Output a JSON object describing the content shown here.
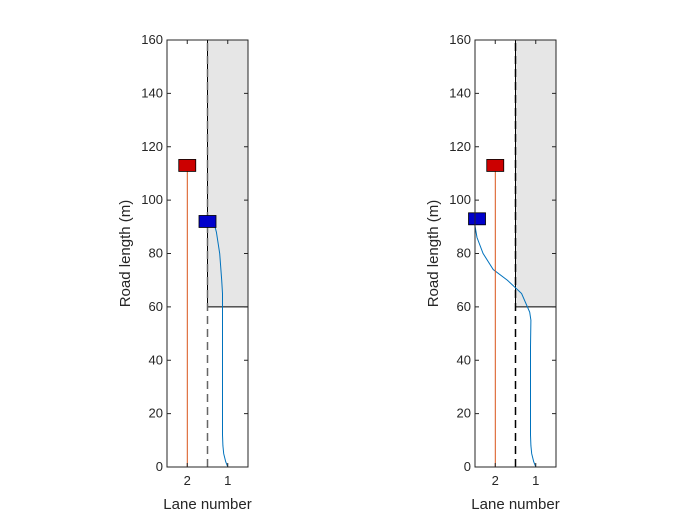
{
  "chart_data": [
    {
      "type": "line",
      "title": "",
      "xlabel": "Lane number",
      "ylabel": "Road length (m)",
      "ylim": [
        0,
        160
      ],
      "y_ticks": [
        "0",
        "20",
        "40",
        "60",
        "80",
        "100",
        "120",
        "140",
        "160"
      ],
      "x_ticks": [
        "2",
        "1"
      ],
      "grid": false,
      "lanes": [
        {
          "number": 2,
          "center": 2
        },
        {
          "number": 1,
          "center": 1
        }
      ],
      "lane_divider": {
        "x": 1.5,
        "style": "dashed",
        "color": "#666666"
      },
      "obstacle": {
        "x_from": 0.5,
        "x_to": 1.5,
        "y_from": 60,
        "y_to": 160,
        "color": "#e6e6e6"
      },
      "series": [
        {
          "color": "#0072bd",
          "points": [
            [
              1.0,
              0
            ],
            [
              1.05,
              2
            ],
            [
              1.1,
              5
            ],
            [
              1.12,
              8
            ],
            [
              1.13,
              12
            ],
            [
              1.13,
              30
            ],
            [
              1.13,
              50
            ],
            [
              1.13,
              65
            ],
            [
              1.15,
              70
            ],
            [
              1.2,
              80
            ],
            [
              1.28,
              88
            ],
            [
              1.35,
              92
            ]
          ]
        },
        {
          "color": "#d95319",
          "points": [
            [
              2.0,
              0
            ],
            [
              2.0,
              113
            ]
          ]
        }
      ],
      "markers": [
        {
          "color": "#cc0000",
          "x": 2.0,
          "y": 113
        },
        {
          "color": "#0000cc",
          "x": 1.5,
          "y": 92
        }
      ]
    },
    {
      "type": "line",
      "title": "",
      "xlabel": "Lane number",
      "ylabel": "Road length (m)",
      "ylim": [
        0,
        160
      ],
      "y_ticks": [
        "0",
        "20",
        "40",
        "60",
        "80",
        "100",
        "120",
        "140",
        "160"
      ],
      "x_ticks": [
        "2",
        "1"
      ],
      "grid": false,
      "lanes": [
        {
          "number": 2,
          "center": 2
        },
        {
          "number": 1,
          "center": 1
        }
      ],
      "lane_divider": {
        "x": 1.5,
        "style": "dashed",
        "color": "#000000"
      },
      "obstacle": {
        "x_from": 0.5,
        "x_to": 1.5,
        "y_from": 60,
        "y_to": 160,
        "color": "#e6e6e6"
      },
      "series": [
        {
          "color": "#0072bd",
          "points": [
            [
              1.0,
              0
            ],
            [
              1.05,
              2
            ],
            [
              1.1,
              5
            ],
            [
              1.12,
              8
            ],
            [
              1.13,
              12
            ],
            [
              1.13,
              30
            ],
            [
              1.13,
              45
            ],
            [
              1.12,
              55
            ],
            [
              1.15,
              58
            ],
            [
              1.35,
              65
            ],
            [
              1.7,
              70
            ],
            [
              2.05,
              74
            ],
            [
              2.3,
              80
            ],
            [
              2.45,
              86
            ],
            [
              2.52,
              92
            ]
          ]
        },
        {
          "color": "#d95319",
          "points": [
            [
              2.0,
              0
            ],
            [
              2.0,
              113
            ]
          ]
        }
      ],
      "markers": [
        {
          "color": "#cc0000",
          "x": 2.0,
          "y": 113
        },
        {
          "color": "#0000cc",
          "x": 2.45,
          "y": 93
        }
      ]
    }
  ]
}
